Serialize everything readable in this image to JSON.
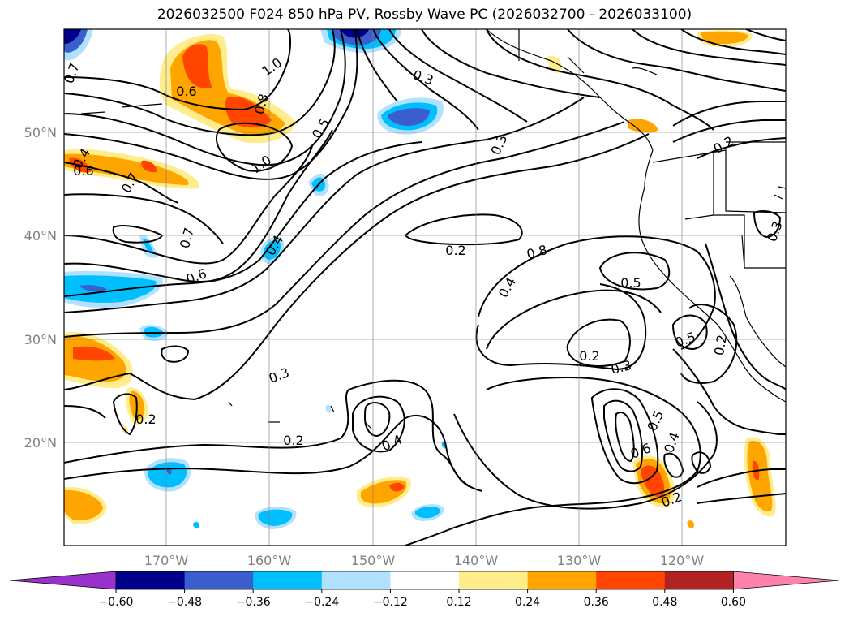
{
  "title": "2026032500 F024 850 hPa PV, Rossby Wave PC (2026032700 - 2026033100)",
  "map": {
    "lon_range": [
      -180,
      -110
    ],
    "lat_range": [
      10,
      60
    ],
    "lat_ticks": [
      "50°N",
      "40°N",
      "30°N",
      "20°N"
    ],
    "lon_ticks": [
      "170°W",
      "160°W",
      "150°W",
      "140°W",
      "130°W",
      "120°W"
    ],
    "grid": true
  },
  "contour_labels": [
    "0.7",
    "1.0",
    "0.3",
    "0.8",
    "0.5",
    "0.6",
    "0.4",
    "0.3",
    "0.6",
    "0.7",
    "1.0",
    "0.2",
    "0.7",
    "0.8",
    "0.4",
    "0.2",
    "0.3",
    "0.4",
    "0.6",
    "0.5",
    "0.5",
    "0.3",
    "0.2",
    "0.3",
    "0.2",
    "0.4",
    "0.5",
    "0.6",
    "0.4",
    "0.2",
    "0.2",
    "0.2"
  ],
  "colorbar": {
    "labels": [
      "−0.60",
      "−0.48",
      "−0.36",
      "−0.24",
      "−0.12",
      "0.12",
      "0.24",
      "0.36",
      "0.48",
      "0.60"
    ],
    "colors": [
      "#9932cc",
      "#00008b",
      "#3a5fcd",
      "#00bfff",
      "#b0e2ff",
      "#ffffff",
      "#ffec8b",
      "#ffa500",
      "#ff4500",
      "#b22222",
      "#ff82ab"
    ]
  }
}
